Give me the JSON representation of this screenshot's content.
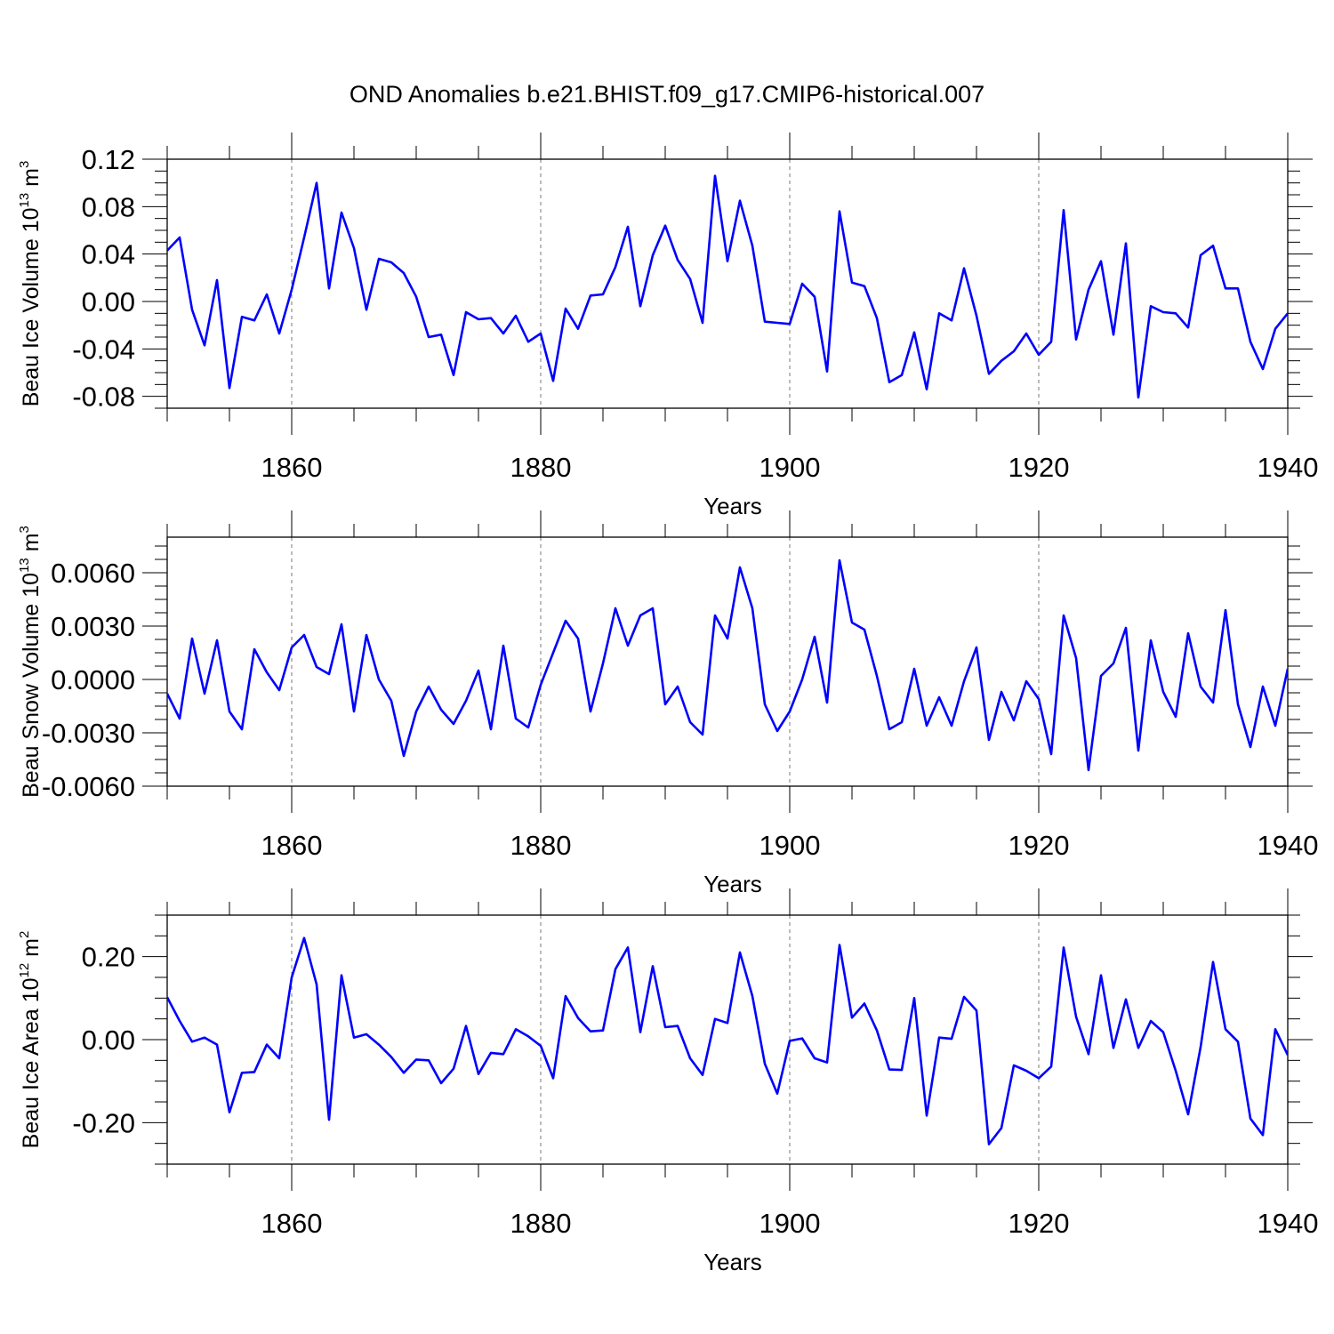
{
  "title": "OND Anomalies b.e21.BHIST.f09_g17.CMIP6-historical.007",
  "colors": {
    "line": "#0000ff",
    "axis": "#000000",
    "grid": "#7a7a7a"
  },
  "chart_data": [
    {
      "type": "line",
      "ylabel": {
        "pre": "Beau Ice Volume 10",
        "sup": "13",
        "mid": " m",
        "sup2": "3"
      },
      "xlabel": "Years",
      "xlim": [
        1850,
        1940
      ],
      "ylim": [
        -0.09,
        0.12
      ],
      "yticks": [
        -0.08,
        -0.04,
        0.0,
        0.04,
        0.08,
        0.12
      ],
      "ytick_labels": [
        "-0.08",
        "-0.04",
        "0.00",
        "0.04",
        "0.08",
        "0.12"
      ],
      "xticks": [
        1860,
        1880,
        1900,
        1920,
        1940
      ],
      "xtick_labels": [
        "1860",
        "1880",
        "1900",
        "1920",
        "1940"
      ],
      "series": [
        {
          "name": "Beau Ice Volume",
          "x_start": 1850,
          "values": [
            0.043,
            0.054,
            -0.007,
            -0.037,
            0.018,
            -0.073,
            -0.013,
            -0.016,
            0.006,
            -0.027,
            0.01,
            0.054,
            0.1,
            0.011,
            0.075,
            0.045,
            -0.007,
            0.036,
            0.033,
            0.024,
            0.004,
            -0.03,
            -0.028,
            -0.062,
            -0.009,
            -0.015,
            -0.014,
            -0.027,
            -0.012,
            -0.034,
            -0.027,
            -0.067,
            -0.006,
            -0.023,
            0.005,
            0.006,
            0.029,
            0.063,
            -0.004,
            0.039,
            0.064,
            0.035,
            0.019,
            -0.018,
            0.106,
            0.034,
            0.085,
            0.047,
            -0.017,
            -0.018,
            -0.019,
            0.015,
            0.004,
            -0.059,
            0.076,
            0.016,
            0.013,
            -0.014,
            -0.068,
            -0.062,
            -0.026,
            -0.074,
            -0.01,
            -0.016,
            0.028,
            -0.012,
            -0.061,
            -0.05,
            -0.042,
            -0.027,
            -0.045,
            -0.034,
            0.077,
            -0.032,
            0.01,
            0.034,
            -0.028,
            0.049,
            -0.081,
            -0.004,
            -0.009,
            -0.01,
            -0.022,
            0.039,
            0.047,
            0.011,
            0.011,
            -0.034,
            -0.057,
            -0.023,
            -0.01
          ]
        }
      ]
    },
    {
      "type": "line",
      "ylabel": {
        "pre": "Beau Snow Volume 10",
        "sup": "13",
        "mid": " m",
        "sup2": "3"
      },
      "xlabel": "Years",
      "xlim": [
        1850,
        1940
      ],
      "ylim": [
        -0.006,
        0.008
      ],
      "yticks": [
        -0.006,
        -0.003,
        0.0,
        0.003,
        0.006
      ],
      "ytick_labels": [
        "-0.0060",
        "-0.0030",
        "0.0000",
        "0.0030",
        "0.0060"
      ],
      "xticks": [
        1860,
        1880,
        1900,
        1920,
        1940
      ],
      "xtick_labels": [
        "1860",
        "1880",
        "1900",
        "1920",
        "1940"
      ],
      "series": [
        {
          "name": "Beau Snow Volume",
          "x_start": 1850,
          "values": [
            -0.0008,
            -0.0022,
            0.0023,
            -0.0008,
            0.0022,
            -0.0018,
            -0.0028,
            0.0017,
            0.0004,
            -0.0006,
            0.0018,
            0.0025,
            0.0007,
            0.0003,
            0.0031,
            -0.0018,
            0.0025,
            0.0,
            -0.0012,
            -0.0043,
            -0.0018,
            -0.0004,
            -0.0017,
            -0.0025,
            -0.0012,
            0.0005,
            -0.0028,
            0.0019,
            -0.0022,
            -0.0027,
            -0.0003,
            0.0015,
            0.0033,
            0.0023,
            -0.0018,
            0.0009,
            0.004,
            0.0019,
            0.0036,
            0.004,
            -0.0014,
            -0.0004,
            -0.0024,
            -0.0031,
            0.0036,
            0.0023,
            0.0063,
            0.004,
            -0.0014,
            -0.0029,
            -0.0018,
            0.0,
            0.0024,
            -0.0013,
            0.0067,
            0.0032,
            0.0028,
            0.0002,
            -0.0028,
            -0.0024,
            0.0006,
            -0.0026,
            -0.001,
            -0.0026,
            -0.0001,
            0.0018,
            -0.0034,
            -0.0007,
            -0.0023,
            -0.0001,
            -0.0011,
            -0.0042,
            0.0036,
            0.0012,
            -0.0051,
            0.0002,
            0.0009,
            0.0029,
            -0.004,
            0.0022,
            -0.0007,
            -0.0021,
            0.0026,
            -0.0004,
            -0.0013,
            0.0039,
            -0.0014,
            -0.0038,
            -0.0004,
            -0.0026,
            0.0006
          ]
        }
      ]
    },
    {
      "type": "line",
      "ylabel": {
        "pre": "Beau Ice Area 10",
        "sup": "12",
        "mid": " m",
        "sup2": "2"
      },
      "xlabel": "Years",
      "xlim": [
        1850,
        1940
      ],
      "ylim": [
        -0.3,
        0.3
      ],
      "yticks": [
        -0.2,
        0.0,
        0.2
      ],
      "ytick_labels": [
        "-0.20",
        "0.00",
        "0.20"
      ],
      "xticks": [
        1860,
        1880,
        1900,
        1920,
        1940
      ],
      "xtick_labels": [
        "1860",
        "1880",
        "1900",
        "1920",
        "1940"
      ],
      "series": [
        {
          "name": "Beau Ice Area",
          "x_start": 1850,
          "values": [
            0.102,
            0.045,
            -0.005,
            0.005,
            -0.012,
            -0.175,
            -0.08,
            -0.078,
            -0.012,
            -0.045,
            0.15,
            0.245,
            0.133,
            -0.193,
            0.155,
            0.005,
            0.013,
            -0.012,
            -0.042,
            -0.08,
            -0.048,
            -0.05,
            -0.105,
            -0.07,
            0.033,
            -0.083,
            -0.032,
            -0.035,
            0.025,
            0.008,
            -0.015,
            -0.093,
            0.105,
            0.052,
            0.02,
            0.022,
            0.17,
            0.222,
            0.018,
            0.177,
            0.03,
            0.033,
            -0.045,
            -0.085,
            0.05,
            0.04,
            0.21,
            0.105,
            -0.058,
            -0.13,
            -0.003,
            0.003,
            -0.045,
            -0.055,
            0.228,
            0.053,
            0.087,
            0.022,
            -0.072,
            -0.073,
            0.1,
            -0.183,
            0.005,
            0.002,
            0.103,
            0.07,
            -0.252,
            -0.213,
            -0.062,
            -0.075,
            -0.093,
            -0.065,
            0.222,
            0.055,
            -0.035,
            0.155,
            -0.02,
            0.097,
            -0.02,
            0.045,
            0.018,
            -0.075,
            -0.18,
            -0.018,
            0.187,
            0.025,
            -0.005,
            -0.19,
            -0.23,
            0.025,
            -0.037
          ]
        }
      ]
    }
  ]
}
